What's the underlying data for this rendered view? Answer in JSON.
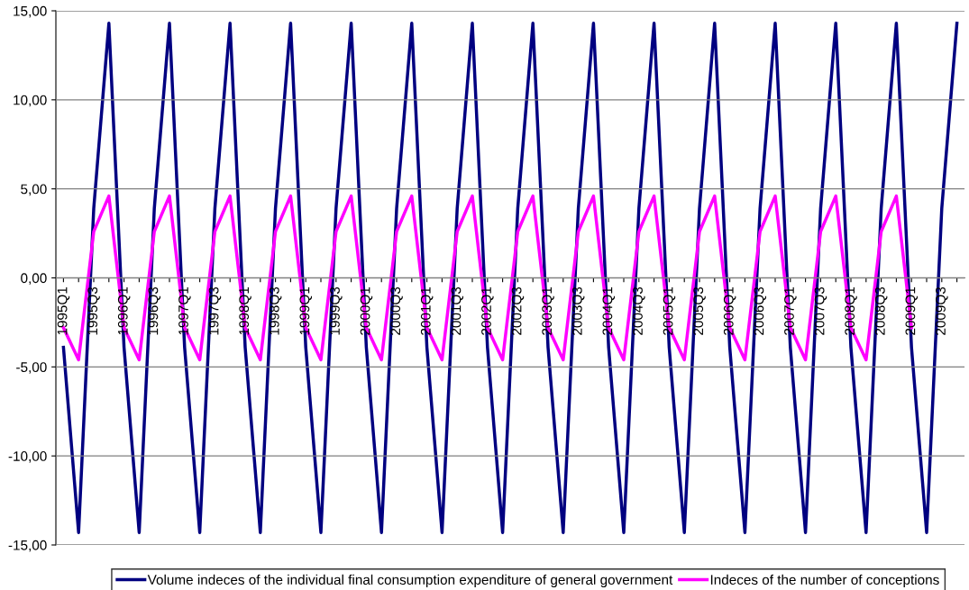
{
  "chart_data": {
    "type": "line",
    "categories": [
      "1995Q1",
      null,
      "1995Q3",
      null,
      "1996Q1",
      null,
      "1996Q3",
      null,
      "1997Q1",
      null,
      "1997Q3",
      null,
      "1998Q1",
      null,
      "1998Q3",
      null,
      "1999Q1",
      null,
      "1999Q3",
      null,
      "2000Q1",
      null,
      "2000Q3",
      null,
      "2001Q1",
      null,
      "2001Q3",
      null,
      "2002Q1",
      null,
      "2002Q3",
      null,
      "2003Q1",
      null,
      "2003Q3",
      null,
      "2004Q1",
      null,
      "2004Q3",
      null,
      "2005Q1",
      null,
      "2005Q3",
      null,
      "2006Q1",
      null,
      "2006Q3",
      null,
      "2007Q1",
      null,
      "2007Q3",
      null,
      "2008Q1",
      null,
      "2008Q3",
      null,
      "2009Q1",
      null,
      "2009Q3",
      null
    ],
    "series": [
      {
        "name": "Volume indeces of the individual final consumption expenditure of general government",
        "color": "#000080",
        "values": [
          -3.9,
          -14.3,
          3.9,
          14.3,
          -3.9,
          -14.3,
          3.9,
          14.3,
          -3.9,
          -14.3,
          3.9,
          14.3,
          -3.9,
          -14.3,
          3.9,
          14.3,
          -3.9,
          -14.3,
          3.9,
          14.3,
          -3.9,
          -14.3,
          3.9,
          14.3,
          -3.9,
          -14.3,
          3.9,
          14.3,
          -3.9,
          -14.3,
          3.9,
          14.3,
          -3.9,
          -14.3,
          3.9,
          14.3,
          -3.9,
          -14.3,
          3.9,
          14.3,
          -3.9,
          -14.3,
          3.9,
          14.3,
          -3.9,
          -14.3,
          3.9,
          14.3,
          -3.9,
          -14.3,
          3.9,
          14.3,
          -3.9,
          -14.3,
          3.9,
          14.3,
          -3.9,
          -14.3,
          3.9,
          14.3
        ]
      },
      {
        "name": "Indeces of the number of conceptions",
        "color": "#ff00ff",
        "values": [
          -2.8,
          -4.6,
          2.6,
          4.6,
          -2.8,
          -4.6,
          2.6,
          4.6,
          -2.8,
          -4.6,
          2.6,
          4.6,
          -2.8,
          -4.6,
          2.6,
          4.6,
          -2.8,
          -4.6,
          2.6,
          4.6,
          -2.8,
          -4.6,
          2.6,
          4.6,
          -2.8,
          -4.6,
          2.6,
          4.6,
          -2.8,
          -4.6,
          2.6,
          4.6,
          -2.8,
          -4.6,
          2.6,
          4.6,
          -2.8,
          -4.6,
          2.6,
          4.6,
          -2.8,
          -4.6,
          2.6,
          4.6,
          -2.8,
          -4.6,
          2.6,
          4.6,
          -2.8,
          -4.6,
          2.6,
          4.6,
          -2.8,
          -4.6,
          2.6,
          4.6,
          -2.8,
          null,
          null,
          null
        ]
      }
    ],
    "ylim": [
      -15,
      15
    ],
    "yticks": [
      {
        "value": -15,
        "label": "-15,00"
      },
      {
        "value": -10,
        "label": "-10,00"
      },
      {
        "value": -5,
        "label": "-5,00"
      },
      {
        "value": 0,
        "label": "0,00"
      },
      {
        "value": 5,
        "label": "5,00"
      },
      {
        "value": 10,
        "label": "10,00"
      },
      {
        "value": 15,
        "label": "15,00"
      }
    ],
    "grid": "y",
    "legend": "bottom",
    "marker": "none",
    "line_style": "solid"
  }
}
